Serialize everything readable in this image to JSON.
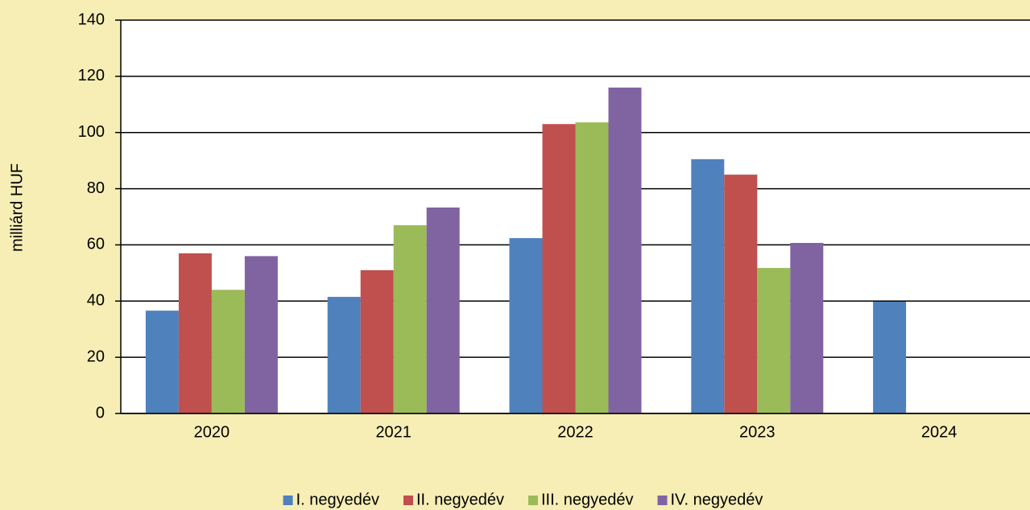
{
  "chart_data": {
    "type": "bar",
    "y_label": "milliárd HUF",
    "categories": [
      "2020",
      "2021",
      "2022",
      "2023",
      "2024"
    ],
    "series": [
      {
        "name": "I. negyedév",
        "color": "#4f81bd",
        "values": [
          36.6,
          41.5,
          62.4,
          90.5,
          39.8
        ]
      },
      {
        "name": "II. negyedév",
        "color": "#c0504d",
        "values": [
          57,
          51,
          103,
          85,
          null
        ]
      },
      {
        "name": "III. negyedév",
        "color": "#9bbb59",
        "values": [
          44,
          67,
          103.6,
          51.8,
          null
        ]
      },
      {
        "name": "IV. negyedév",
        "color": "#8064a2",
        "values": [
          56,
          73.3,
          116,
          60.7,
          null
        ]
      }
    ],
    "ylim": [
      0,
      140
    ],
    "yticks": [
      0,
      20,
      40,
      60,
      80,
      100,
      120,
      140
    ],
    "grid": true,
    "legend": "bottom"
  }
}
